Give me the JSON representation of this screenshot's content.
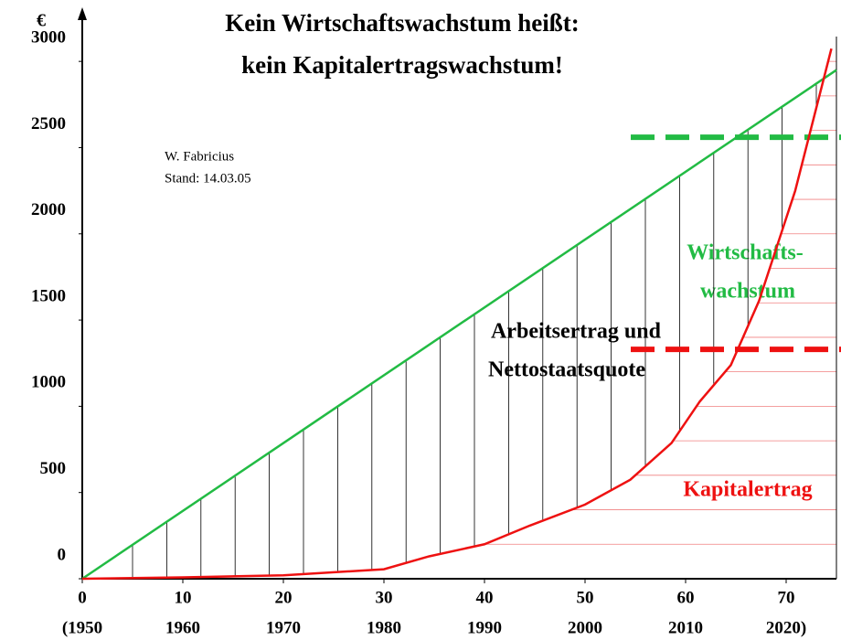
{
  "chart_data": {
    "type": "line",
    "title": [
      "Kein Wirtschaftswachstum heißt:",
      "kein Kapitalertragswachstum!"
    ],
    "author": "W. Fabricius",
    "date_note": "Stand: 14.03.05",
    "y_unit": "€",
    "xlim": [
      0,
      75
    ],
    "ylim": [
      0,
      3250
    ],
    "xticks": [
      0,
      10,
      20,
      30,
      40,
      50,
      60,
      70
    ],
    "xtick_years": [
      "(1950",
      "1960",
      "1970",
      "1980",
      "1990",
      "2000",
      "2010",
      "2020)"
    ],
    "yticks": [
      0,
      500,
      1000,
      1500,
      2000,
      2500,
      3000
    ],
    "series": [
      {
        "name": "Wirtschaftswachstum",
        "label_lines": [
          "Wirtschafts-",
          "wachstum"
        ],
        "color": "#22bb44",
        "x": [
          0,
          75
        ],
        "values": [
          0,
          2950
        ],
        "reference": 2560
      },
      {
        "name": "Kapitalertrag",
        "label_lines": [
          "Kapitalertrag"
        ],
        "color": "#ee1111",
        "x": [
          0,
          10,
          20,
          30,
          34.5,
          40,
          44.5,
          50,
          54.5,
          58.6,
          61.4,
          64.5,
          67.3,
          70.9,
          74.5
        ],
        "values": [
          0,
          8,
          20,
          55,
          130,
          200,
          308,
          430,
          574,
          787,
          1027,
          1239,
          1611,
          2250,
          3074
        ],
        "reference": 1330
      }
    ],
    "middle_label": [
      "Arbeitsertrag und",
      "Nettostaatsquote"
    ]
  }
}
